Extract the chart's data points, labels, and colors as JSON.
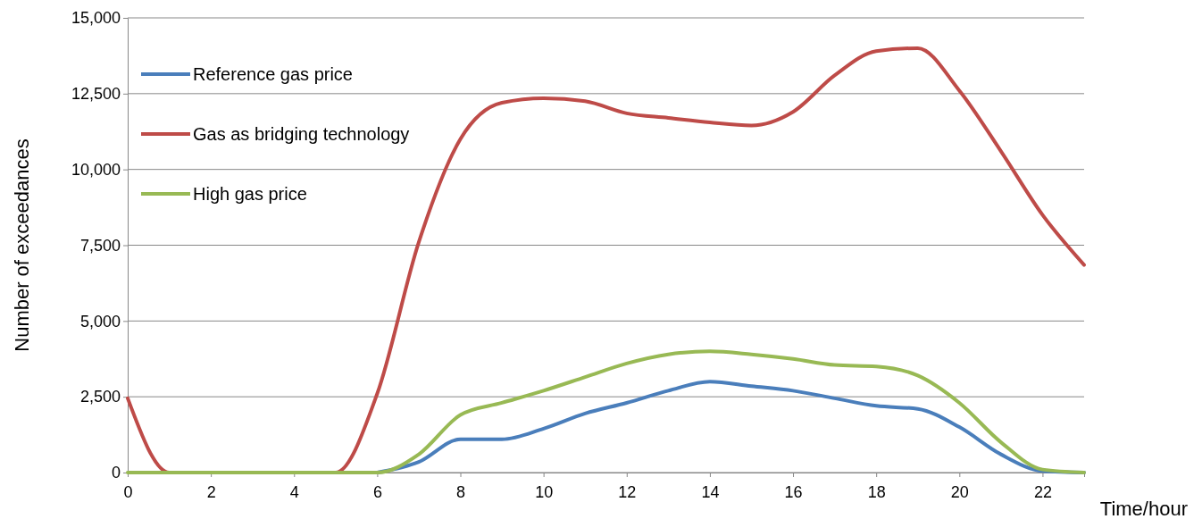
{
  "chart_data": {
    "type": "line",
    "xlabel": "Time/hour",
    "ylabel": "Number of exceedances",
    "x": [
      0,
      1,
      2,
      3,
      4,
      5,
      6,
      7,
      8,
      9,
      10,
      11,
      12,
      13,
      14,
      15,
      16,
      17,
      18,
      19,
      20,
      21,
      22,
      23
    ],
    "series": [
      {
        "name": "Reference gas price",
        "color": "#4a7ebb",
        "values": [
          null,
          null,
          null,
          null,
          null,
          null,
          0,
          350,
          1100,
          1100,
          1450,
          1950,
          2300,
          2700,
          3000,
          2850,
          2700,
          2450,
          2200,
          2100,
          1500,
          600,
          50,
          0
        ]
      },
      {
        "name": "Gas as bridging technology",
        "color": "#be4b48",
        "values": [
          2450,
          0,
          0,
          0,
          0,
          0,
          2600,
          7600,
          11000,
          12200,
          12350,
          12250,
          11850,
          11700,
          11550,
          11450,
          11900,
          13100,
          13900,
          14000,
          12600,
          10600,
          8500,
          6850
        ]
      },
      {
        "name": "High gas price",
        "color": "#98b954",
        "values": [
          0,
          0,
          0,
          0,
          0,
          0,
          0,
          600,
          1900,
          2300,
          2700,
          3150,
          3600,
          3900,
          4000,
          3900,
          3750,
          3550,
          3500,
          3200,
          2300,
          1000,
          100,
          0
        ]
      }
    ],
    "xlim": [
      0,
      23
    ],
    "xticks": [
      0,
      2,
      4,
      6,
      8,
      10,
      12,
      14,
      16,
      18,
      20,
      22
    ],
    "ylim": [
      0,
      15000
    ],
    "yticks": [
      {
        "value": 0,
        "label": "0"
      },
      {
        "value": 2500,
        "label": "2,500"
      },
      {
        "value": 5000,
        "label": "5,000"
      },
      {
        "value": 7500,
        "label": "7,500"
      },
      {
        "value": 10000,
        "label": "10,000"
      },
      {
        "value": 12500,
        "label": "12,500"
      },
      {
        "value": 15000,
        "label": "15,000"
      }
    ],
    "grid": "y",
    "legend": "top left",
    "marker": "none",
    "line_style": "solid"
  }
}
